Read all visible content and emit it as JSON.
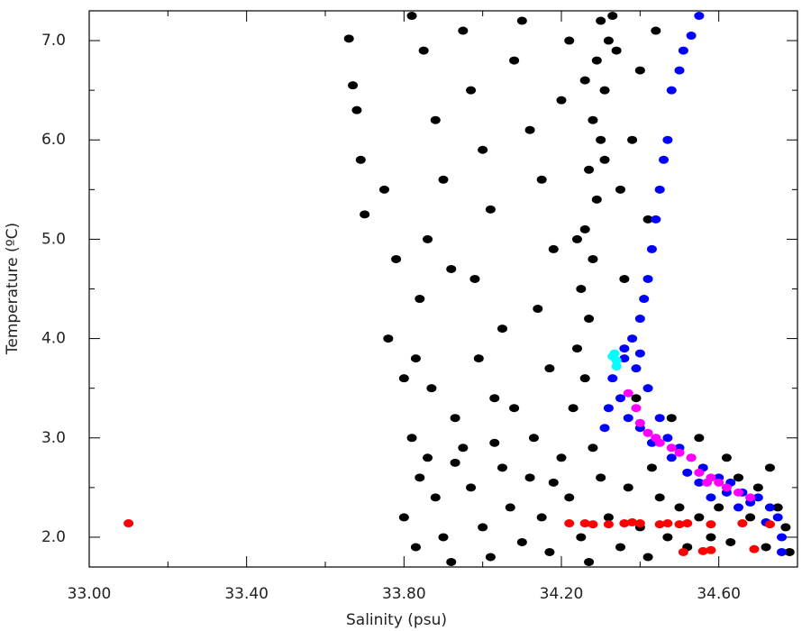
{
  "chart_data": {
    "type": "scatter",
    "x_label": "Salinity (psu)",
    "y_label": "Temperature (ºC)",
    "xlim": [
      33.0,
      34.8
    ],
    "ylim": [
      1.7,
      7.3
    ],
    "xticks": [
      {
        "value": 33.0,
        "label": "33.00"
      },
      {
        "value": 33.4,
        "label": "33.40"
      },
      {
        "value": 33.8,
        "label": "33.80"
      },
      {
        "value": 34.2,
        "label": "34.20"
      },
      {
        "value": 34.6,
        "label": "34.60"
      }
    ],
    "xminorticks": [
      33.2,
      33.6,
      34.0,
      34.4
    ],
    "yticks": [
      {
        "value": 2,
        "label": "2.0"
      },
      {
        "value": 3,
        "label": "3.0"
      },
      {
        "value": 4,
        "label": "4.0"
      },
      {
        "value": 5,
        "label": "5.0"
      },
      {
        "value": 6,
        "label": "6.0"
      },
      {
        "value": 7,
        "label": "7.0"
      }
    ],
    "yminorticks": [
      2.5,
      3.5,
      4.5,
      5.5,
      6.5
    ],
    "series": [
      {
        "color": "#000000",
        "x": [
          34.3,
          34.32,
          34.29,
          34.31,
          34.28,
          34.3,
          34.27,
          34.29,
          34.26,
          34.28,
          34.25,
          34.27,
          34.24,
          34.26,
          34.23,
          34.33,
          34.34,
          34.26,
          34.31,
          34.24,
          33.66,
          33.67,
          33.68,
          33.69,
          33.7,
          33.75,
          33.78,
          33.76,
          33.8,
          33.82,
          33.85,
          33.88,
          33.9,
          33.86,
          33.84,
          33.83,
          33.92,
          33.95,
          33.97,
          34.0,
          34.02,
          33.98,
          34.05,
          34.08,
          34.1,
          34.12,
          34.15,
          34.18,
          34.14,
          34.2,
          34.22,
          34.17,
          34.03,
          33.93,
          34.35,
          34.38,
          34.4,
          34.36,
          34.39,
          34.42,
          34.44,
          33.82,
          33.84,
          33.8,
          33.83,
          33.86,
          33.88,
          33.9,
          33.92,
          33.95,
          33.97,
          34.0,
          34.02,
          34.05,
          34.07,
          34.1,
          34.12,
          34.15,
          34.17,
          34.2,
          34.22,
          34.25,
          34.27,
          34.3,
          34.32,
          34.35,
          34.37,
          34.4,
          34.42,
          34.45,
          34.47,
          34.5,
          34.52,
          34.55,
          34.58,
          34.6,
          34.63,
          34.65,
          34.68,
          34.7,
          34.72,
          34.75,
          34.77,
          34.78,
          34.73,
          34.62,
          34.55,
          34.48,
          33.87,
          33.99,
          34.08,
          34.13,
          34.03,
          33.93,
          34.18,
          34.28,
          34.43
        ],
        "y": [
          7.2,
          7.0,
          6.8,
          6.5,
          6.2,
          6.0,
          5.7,
          5.4,
          5.1,
          4.8,
          4.5,
          4.2,
          3.9,
          3.6,
          3.3,
          7.25,
          6.9,
          6.6,
          5.8,
          5.0,
          7.02,
          6.55,
          6.3,
          5.8,
          5.25,
          5.5,
          4.8,
          4.0,
          3.6,
          7.25,
          6.9,
          6.2,
          5.6,
          5.0,
          4.4,
          3.8,
          4.7,
          7.1,
          6.5,
          5.9,
          5.3,
          4.6,
          4.1,
          6.8,
          7.2,
          6.1,
          5.6,
          4.9,
          4.3,
          6.4,
          7.0,
          3.7,
          3.4,
          3.2,
          5.5,
          6.0,
          6.7,
          4.6,
          3.4,
          5.2,
          7.1,
          3.0,
          2.6,
          2.2,
          1.9,
          2.8,
          2.4,
          2.0,
          1.75,
          2.9,
          2.5,
          2.1,
          1.8,
          2.7,
          2.3,
          1.95,
          2.6,
          2.2,
          1.85,
          2.8,
          2.4,
          2.0,
          1.75,
          2.6,
          2.2,
          1.9,
          2.5,
          2.1,
          1.8,
          2.4,
          2.0,
          2.3,
          1.9,
          2.2,
          2.0,
          2.3,
          1.95,
          2.6,
          2.2,
          2.5,
          1.9,
          2.3,
          2.1,
          1.85,
          2.7,
          2.8,
          3.0,
          3.2,
          3.5,
          3.8,
          3.3,
          3.0,
          2.95,
          2.75,
          2.55,
          2.9,
          2.7
        ]
      },
      {
        "color": "#0000ff",
        "x": [
          34.55,
          34.53,
          34.51,
          34.5,
          34.48,
          34.47,
          34.46,
          34.45,
          34.44,
          34.43,
          34.42,
          34.41,
          34.4,
          34.38,
          34.36,
          34.33,
          34.32,
          34.31,
          34.35,
          34.39,
          34.42,
          34.45,
          34.47,
          34.5,
          34.53,
          34.56,
          34.6,
          34.63,
          34.66,
          34.7,
          34.73,
          34.75,
          34.76,
          34.76,
          34.4,
          34.43,
          34.48,
          34.55,
          34.62,
          34.68,
          34.72,
          34.36,
          34.4,
          34.37,
          34.44,
          34.52,
          34.58,
          34.65
        ],
        "y": [
          7.25,
          7.05,
          6.9,
          6.7,
          6.5,
          6.0,
          5.8,
          5.5,
          5.2,
          4.9,
          4.6,
          4.4,
          4.2,
          4.0,
          3.8,
          3.6,
          3.3,
          3.1,
          3.4,
          3.7,
          3.5,
          3.2,
          3.0,
          2.9,
          2.8,
          2.7,
          2.6,
          2.55,
          2.45,
          2.4,
          2.3,
          2.2,
          2.0,
          1.85,
          3.1,
          2.95,
          2.8,
          2.55,
          2.45,
          2.35,
          2.15,
          3.9,
          3.85,
          3.2,
          3.0,
          2.65,
          2.4,
          2.3
        ]
      },
      {
        "color": "#ff00ff",
        "x": [
          34.37,
          34.39,
          34.4,
          34.42,
          34.45,
          34.48,
          34.5,
          34.53,
          34.55,
          34.58,
          34.6,
          34.62,
          34.65,
          34.68,
          34.57,
          34.44
        ],
        "y": [
          3.45,
          3.3,
          3.15,
          3.05,
          2.95,
          2.9,
          2.85,
          2.8,
          2.65,
          2.6,
          2.55,
          2.5,
          2.45,
          2.4,
          2.55,
          3.0
        ]
      },
      {
        "color": "#00ffff",
        "x": [
          34.33,
          34.34,
          34.335,
          34.34
        ],
        "y": [
          3.82,
          3.78,
          3.85,
          3.72
        ]
      },
      {
        "color": "#ff0000",
        "x": [
          33.1,
          34.22,
          34.26,
          34.28,
          34.32,
          34.36,
          34.38,
          34.4,
          34.45,
          34.47,
          34.5,
          34.52,
          34.58,
          34.66,
          34.73,
          34.51,
          34.56,
          34.58,
          34.69
        ],
        "y": [
          2.14,
          2.14,
          2.14,
          2.13,
          2.13,
          2.14,
          2.15,
          2.14,
          2.13,
          2.14,
          2.13,
          2.14,
          2.13,
          2.14,
          2.13,
          1.85,
          1.86,
          1.87,
          1.88
        ]
      }
    ]
  }
}
